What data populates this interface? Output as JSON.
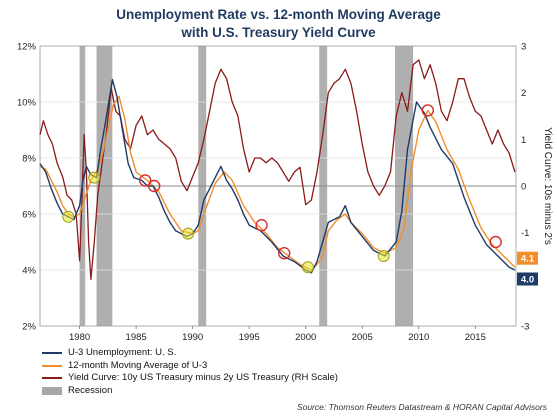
{
  "title_line1": "Unemployment Rate vs. 12-month Moving Average",
  "title_line2": "with U.S. Treasury Yield Curve",
  "source": "Source: Thomson Reuters Datastream & HORAN Capital Advisors",
  "colors": {
    "unemployment": "#1f3a68",
    "moving_average": "#f28e2b",
    "yield_curve": "#8b1a1a",
    "recession": "#a6a6a6",
    "label_orange": "#f28e2b",
    "label_navy": "#1f3a68",
    "circle_yellow": "#e6e62e",
    "circle_red": "#d62b2b"
  },
  "chart_data": {
    "type": "line",
    "title": "Unemployment Rate vs. 12-month Moving Average with U.S. Treasury Yield Curve",
    "xlim": [
      1976.5,
      2018.6
    ],
    "x_ticks": [
      1980,
      1985,
      1990,
      1995,
      2000,
      2005,
      2010,
      2015
    ],
    "y_left": {
      "lim": [
        2,
        12
      ],
      "ticks": [
        "2%",
        "4%",
        "6%",
        "8%",
        "10%",
        "12%"
      ],
      "tick_values": [
        2,
        4,
        6,
        8,
        10,
        12
      ]
    },
    "y_right": {
      "label": "Yield Curve: 10s minus 2's",
      "lim": [
        -3,
        3
      ],
      "ticks": [
        "-3",
        "-2",
        "-1",
        "0",
        "1",
        "2",
        "3"
      ],
      "tick_values": [
        -3,
        -2,
        -1,
        0,
        1,
        2,
        3
      ]
    },
    "grid": "horizontal",
    "recessions": [
      [
        1980.0,
        1980.5
      ],
      [
        1981.5,
        1982.9
      ],
      [
        1990.5,
        1991.2
      ],
      [
        2001.2,
        2001.9
      ],
      [
        2007.9,
        2009.5
      ]
    ],
    "series": [
      {
        "name": "U-3 Unemployment: U. S.",
        "axis": "left",
        "points": [
          [
            1976.5,
            7.8
          ],
          [
            1977.0,
            7.5
          ],
          [
            1977.5,
            6.9
          ],
          [
            1978.0,
            6.4
          ],
          [
            1978.5,
            6.0
          ],
          [
            1979.0,
            5.9
          ],
          [
            1979.5,
            5.8
          ],
          [
            1980.0,
            6.3
          ],
          [
            1980.3,
            7.2
          ],
          [
            1980.6,
            7.7
          ],
          [
            1981.0,
            7.4
          ],
          [
            1981.5,
            7.3
          ],
          [
            1981.9,
            8.4
          ],
          [
            1982.3,
            9.3
          ],
          [
            1982.9,
            10.8
          ],
          [
            1983.3,
            10.2
          ],
          [
            1983.8,
            9.0
          ],
          [
            1984.3,
            7.8
          ],
          [
            1984.8,
            7.3
          ],
          [
            1985.5,
            7.2
          ],
          [
            1986.0,
            7.0
          ],
          [
            1986.5,
            7.0
          ],
          [
            1987.0,
            6.6
          ],
          [
            1987.5,
            6.1
          ],
          [
            1988.0,
            5.7
          ],
          [
            1988.5,
            5.4
          ],
          [
            1989.0,
            5.3
          ],
          [
            1989.5,
            5.2
          ],
          [
            1990.0,
            5.3
          ],
          [
            1990.5,
            5.6
          ],
          [
            1991.0,
            6.5
          ],
          [
            1991.5,
            6.9
          ],
          [
            1992.0,
            7.3
          ],
          [
            1992.5,
            7.7
          ],
          [
            1993.0,
            7.2
          ],
          [
            1993.5,
            6.9
          ],
          [
            1994.0,
            6.5
          ],
          [
            1994.5,
            6.0
          ],
          [
            1995.0,
            5.6
          ],
          [
            1996.0,
            5.4
          ],
          [
            1997.0,
            5.0
          ],
          [
            1998.0,
            4.5
          ],
          [
            1999.0,
            4.3
          ],
          [
            2000.0,
            4.0
          ],
          [
            2000.5,
            3.9
          ],
          [
            2001.0,
            4.3
          ],
          [
            2001.5,
            5.0
          ],
          [
            2002.0,
            5.7
          ],
          [
            2003.0,
            5.9
          ],
          [
            2003.5,
            6.3
          ],
          [
            2004.0,
            5.7
          ],
          [
            2005.0,
            5.2
          ],
          [
            2006.0,
            4.7
          ],
          [
            2007.0,
            4.5
          ],
          [
            2008.0,
            5.0
          ],
          [
            2008.5,
            6.1
          ],
          [
            2009.0,
            8.3
          ],
          [
            2009.8,
            10.0
          ],
          [
            2010.5,
            9.6
          ],
          [
            2011.0,
            9.1
          ],
          [
            2012.0,
            8.3
          ],
          [
            2013.0,
            7.8
          ],
          [
            2014.0,
            6.6
          ],
          [
            2015.0,
            5.6
          ],
          [
            2016.0,
            4.9
          ],
          [
            2017.0,
            4.5
          ],
          [
            2017.5,
            4.3
          ],
          [
            2018.0,
            4.1
          ],
          [
            2018.5,
            4.0
          ]
        ]
      },
      {
        "name": "12-month Moving Average of U-3",
        "axis": "left",
        "points": [
          [
            1976.5,
            7.7
          ],
          [
            1977.0,
            7.6
          ],
          [
            1977.5,
            7.2
          ],
          [
            1978.0,
            6.8
          ],
          [
            1978.5,
            6.3
          ],
          [
            1979.0,
            6.0
          ],
          [
            1979.5,
            5.9
          ],
          [
            1980.0,
            6.0
          ],
          [
            1980.5,
            6.6
          ],
          [
            1981.0,
            7.2
          ],
          [
            1981.5,
            7.5
          ],
          [
            1982.0,
            8.1
          ],
          [
            1982.5,
            9.0
          ],
          [
            1983.0,
            9.9
          ],
          [
            1983.5,
            10.2
          ],
          [
            1984.0,
            9.4
          ],
          [
            1984.5,
            8.2
          ],
          [
            1985.0,
            7.5
          ],
          [
            1986.0,
            7.2
          ],
          [
            1987.0,
            6.8
          ],
          [
            1988.0,
            6.0
          ],
          [
            1989.0,
            5.4
          ],
          [
            1990.0,
            5.3
          ],
          [
            1990.5,
            5.4
          ],
          [
            1991.0,
            6.0
          ],
          [
            1992.0,
            7.1
          ],
          [
            1992.8,
            7.5
          ],
          [
            1993.5,
            7.2
          ],
          [
            1994.5,
            6.3
          ],
          [
            1995.5,
            5.7
          ],
          [
            1996.5,
            5.3
          ],
          [
            1997.5,
            4.8
          ],
          [
            1998.5,
            4.5
          ],
          [
            1999.5,
            4.2
          ],
          [
            2000.5,
            4.0
          ],
          [
            2001.0,
            4.2
          ],
          [
            2001.5,
            4.5
          ],
          [
            2002.0,
            5.4
          ],
          [
            2002.8,
            5.8
          ],
          [
            2003.5,
            6.0
          ],
          [
            2004.0,
            5.7
          ],
          [
            2005.0,
            5.3
          ],
          [
            2006.0,
            4.8
          ],
          [
            2007.0,
            4.6
          ],
          [
            2008.0,
            4.8
          ],
          [
            2008.7,
            5.5
          ],
          [
            2009.3,
            7.5
          ],
          [
            2010.0,
            9.0
          ],
          [
            2010.8,
            9.7
          ],
          [
            2011.5,
            9.3
          ],
          [
            2012.5,
            8.3
          ],
          [
            2013.5,
            7.6
          ],
          [
            2014.5,
            6.5
          ],
          [
            2015.5,
            5.5
          ],
          [
            2016.5,
            4.9
          ],
          [
            2017.5,
            4.5
          ],
          [
            2018.5,
            4.1
          ]
        ]
      },
      {
        "name": "Yield Curve: 10y US Treasury minus 2y US Treasury (RH Scale)",
        "axis": "right",
        "points": [
          [
            1976.5,
            1.1
          ],
          [
            1976.8,
            1.4
          ],
          [
            1977.2,
            1.1
          ],
          [
            1977.6,
            0.9
          ],
          [
            1978.0,
            0.5
          ],
          [
            1978.5,
            0.2
          ],
          [
            1978.9,
            -0.2
          ],
          [
            1979.3,
            -0.3
          ],
          [
            1979.7,
            -0.6
          ],
          [
            1980.0,
            -1.6
          ],
          [
            1980.2,
            -0.4
          ],
          [
            1980.4,
            1.1
          ],
          [
            1980.6,
            0.3
          ],
          [
            1980.8,
            -1.2
          ],
          [
            1981.0,
            -2.0
          ],
          [
            1981.3,
            -1.2
          ],
          [
            1981.6,
            -0.2
          ],
          [
            1982.0,
            0.5
          ],
          [
            1982.4,
            1.2
          ],
          [
            1982.8,
            2.1
          ],
          [
            1983.2,
            1.6
          ],
          [
            1983.6,
            1.5
          ],
          [
            1984.0,
            1.0
          ],
          [
            1984.5,
            0.8
          ],
          [
            1985.0,
            1.3
          ],
          [
            1985.5,
            1.5
          ],
          [
            1986.0,
            1.1
          ],
          [
            1986.5,
            1.2
          ],
          [
            1987.0,
            1.0
          ],
          [
            1987.5,
            0.9
          ],
          [
            1988.0,
            0.8
          ],
          [
            1988.5,
            0.6
          ],
          [
            1989.0,
            0.1
          ],
          [
            1989.5,
            -0.1
          ],
          [
            1990.0,
            0.2
          ],
          [
            1990.5,
            0.5
          ],
          [
            1991.0,
            1.0
          ],
          [
            1991.5,
            1.6
          ],
          [
            1992.0,
            2.2
          ],
          [
            1992.5,
            2.5
          ],
          [
            1993.0,
            2.3
          ],
          [
            1993.5,
            1.8
          ],
          [
            1994.0,
            1.5
          ],
          [
            1994.5,
            0.8
          ],
          [
            1995.0,
            0.3
          ],
          [
            1995.5,
            0.6
          ],
          [
            1996.0,
            0.6
          ],
          [
            1996.5,
            0.5
          ],
          [
            1997.0,
            0.6
          ],
          [
            1997.5,
            0.5
          ],
          [
            1998.0,
            0.3
          ],
          [
            1998.5,
            0.1
          ],
          [
            1999.0,
            0.3
          ],
          [
            1999.5,
            0.4
          ],
          [
            2000.0,
            -0.4
          ],
          [
            2000.5,
            -0.3
          ],
          [
            2001.0,
            0.3
          ],
          [
            2001.5,
            1.1
          ],
          [
            2002.0,
            2.0
          ],
          [
            2002.5,
            2.2
          ],
          [
            2003.0,
            2.3
          ],
          [
            2003.5,
            2.5
          ],
          [
            2004.0,
            2.2
          ],
          [
            2004.5,
            1.6
          ],
          [
            2005.0,
            0.9
          ],
          [
            2005.5,
            0.3
          ],
          [
            2006.0,
            0.0
          ],
          [
            2006.5,
            -0.2
          ],
          [
            2007.0,
            0.0
          ],
          [
            2007.5,
            0.3
          ],
          [
            2008.0,
            1.5
          ],
          [
            2008.5,
            2.0
          ],
          [
            2009.0,
            1.6
          ],
          [
            2009.5,
            2.6
          ],
          [
            2010.0,
            2.7
          ],
          [
            2010.5,
            2.3
          ],
          [
            2011.0,
            2.6
          ],
          [
            2011.5,
            2.2
          ],
          [
            2012.0,
            1.6
          ],
          [
            2012.5,
            1.4
          ],
          [
            2013.0,
            1.8
          ],
          [
            2013.5,
            2.3
          ],
          [
            2014.0,
            2.3
          ],
          [
            2014.5,
            1.9
          ],
          [
            2015.0,
            1.6
          ],
          [
            2015.5,
            1.5
          ],
          [
            2016.0,
            1.2
          ],
          [
            2016.5,
            0.9
          ],
          [
            2017.0,
            1.2
          ],
          [
            2017.5,
            0.9
          ],
          [
            2018.0,
            0.7
          ],
          [
            2018.5,
            0.3
          ]
        ]
      }
    ],
    "circled_points": [
      {
        "x": 1979.0,
        "y": 5.9,
        "color": "yellow"
      },
      {
        "x": 1981.3,
        "y": 7.3,
        "color": "yellow"
      },
      {
        "x": 1985.8,
        "y": 7.2,
        "color": "red"
      },
      {
        "x": 1986.6,
        "y": 7.0,
        "color": "red"
      },
      {
        "x": 1989.6,
        "y": 5.3,
        "color": "yellow"
      },
      {
        "x": 1996.1,
        "y": 5.6,
        "color": "red"
      },
      {
        "x": 1998.1,
        "y": 4.6,
        "color": "red"
      },
      {
        "x": 2000.2,
        "y": 4.1,
        "color": "yellow"
      },
      {
        "x": 2006.9,
        "y": 4.5,
        "color": "yellow"
      },
      {
        "x": 2010.8,
        "y": 9.7,
        "color": "red"
      },
      {
        "x": 2016.8,
        "y": 5.0,
        "color": "red"
      }
    ],
    "end_labels": [
      {
        "text": "4.1",
        "series": "12-month Moving Average of U-3",
        "value": 4.1,
        "color": "orange"
      },
      {
        "text": "4.0",
        "series": "U-3 Unemployment: U. S.",
        "value": 4.0,
        "color": "navy"
      }
    ]
  },
  "legend": [
    {
      "label": "U-3 Unemployment: U. S.",
      "kind": "line",
      "color": "#1f3a68"
    },
    {
      "label": "12-month Moving Average of U-3",
      "kind": "line",
      "color": "#f28e2b"
    },
    {
      "label": "Yield Curve: 10y US Treasury minus 2y US Treasury (RH Scale)",
      "kind": "line",
      "color": "#8b1a1a"
    },
    {
      "label": "Recession",
      "kind": "box",
      "color": "#a6a6a6"
    }
  ]
}
